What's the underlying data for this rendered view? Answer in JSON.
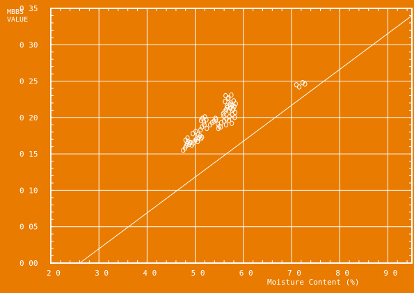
{
  "colors": {
    "background": "#e87b00",
    "foreground": "#ffffff"
  },
  "chart_data": {
    "type": "scatter",
    "title": "",
    "xlabel": "Moisture Content (%)",
    "ylabel": "MBBS VALUE",
    "ylabel_lines": [
      "MBBS",
      "VALUE"
    ],
    "xlim": [
      20,
      95
    ],
    "ylim": [
      0.0,
      0.35
    ],
    "x_ticks": [
      20,
      30,
      40,
      50,
      60,
      70,
      80,
      90
    ],
    "x_tick_labels": [
      "2 0",
      "3 0",
      "4 0",
      "5 0",
      "6 0",
      "7 0",
      "8 0",
      "9 0"
    ],
    "y_ticks": [
      0.0,
      0.05,
      0.1,
      0.15,
      0.2,
      0.25,
      0.3,
      0.35
    ],
    "y_tick_labels": [
      "0 00",
      "0 05",
      "0 10",
      "0 15",
      "0 20",
      "0 25",
      "0 30",
      "0 35"
    ],
    "grid": true,
    "fit_line": {
      "x": [
        26.0,
        95.0
      ],
      "y": [
        0.0,
        0.34
      ]
    },
    "series": [
      {
        "marker": "circle-open",
        "x": [
          47.5,
          47.9,
          48.1,
          48.3,
          48.5,
          48.7,
          49.0,
          49.3,
          49.6,
          49.9,
          50.2,
          50.5,
          50.7,
          51.0,
          51.2,
          51.4,
          48.0,
          48.4,
          48.9,
          49.5,
          50.1,
          50.6,
          51.1,
          51.2,
          51.5,
          51.8,
          52.0,
          52.3,
          51.4,
          51.9,
          52.4,
          53.1,
          53.5,
          53.9,
          54.3,
          54.7,
          55.0,
          55.4,
          54.2,
          54.8,
          55.3,
          55.8,
          56.1,
          56.4,
          56.7,
          57.0,
          57.3,
          57.6,
          57.9,
          58.1,
          58.4,
          56.2,
          56.8,
          57.4,
          58.0,
          56.0,
          56.5,
          57.1,
          57.7,
          58.2,
          56.3,
          56.9,
          57.5,
          56.6,
          57.2,
          57.8,
          55.9,
          57.0,
          58.3,
          56.4,
          57.6,
          71.0,
          71.6,
          72.3,
          72.8
        ],
        "y": [
          0.155,
          0.158,
          0.161,
          0.164,
          0.167,
          0.163,
          0.166,
          0.162,
          0.165,
          0.168,
          0.17,
          0.167,
          0.172,
          0.175,
          0.171,
          0.173,
          0.169,
          0.172,
          0.165,
          0.178,
          0.181,
          0.177,
          0.183,
          0.196,
          0.199,
          0.194,
          0.201,
          0.197,
          0.187,
          0.19,
          0.185,
          0.19,
          0.193,
          0.195,
          0.197,
          0.191,
          0.188,
          0.193,
          0.199,
          0.185,
          0.187,
          0.205,
          0.208,
          0.211,
          0.214,
          0.209,
          0.213,
          0.217,
          0.211,
          0.215,
          0.219,
          0.222,
          0.226,
          0.22,
          0.223,
          0.195,
          0.198,
          0.201,
          0.204,
          0.2,
          0.23,
          0.227,
          0.231,
          0.216,
          0.218,
          0.212,
          0.202,
          0.196,
          0.207,
          0.19,
          0.192,
          0.245,
          0.242,
          0.248,
          0.246
        ]
      }
    ]
  }
}
